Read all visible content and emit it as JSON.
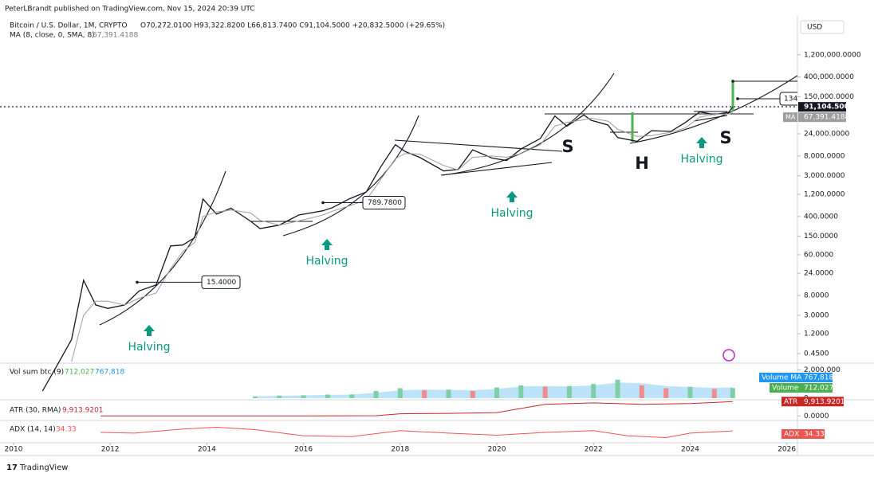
{
  "header": {
    "publisher": "PeterLBrandt published on TradingView.com, Nov 15, 2024 20:39 UTC"
  },
  "footer": {
    "brand": "TradingView"
  },
  "chart_data": {
    "type": "line",
    "symbol": "Bitcoin / U.S. Dollar, 1M, CRYPTO",
    "ohlc": "O70,272.0100 H93,322.8200 L66,813.7400 C91,104.5000 +20,832.5000 (+29.65%)",
    "ma_legend": "MA (8, close, 0, SMA, 8)",
    "ma_name": "MA",
    "currency": "USD",
    "log_scale": true,
    "xlim": [
      2009.72,
      2026.22
    ],
    "xticks": [
      2010,
      2012,
      2014,
      2016,
      2018,
      2020,
      2022,
      2024,
      2026
    ],
    "ylim": [
      0.28,
      6000000
    ],
    "yticks": [
      {
        "value": 1200000,
        "label": "1,200,000.0000"
      },
      {
        "value": 400000,
        "label": "400,000.0000"
      },
      {
        "value": 150000,
        "label": "150,000.0000"
      },
      {
        "value": 24000,
        "label": "24,000.0000"
      },
      {
        "value": 8000,
        "label": "8,000.0000"
      },
      {
        "value": 3000,
        "label": "3,000.0000"
      },
      {
        "value": 1200,
        "label": "1,200.0000"
      },
      {
        "value": 400,
        "label": "400.0000"
      },
      {
        "value": 150,
        "label": "150.0000"
      },
      {
        "value": 60,
        "label": "60.0000"
      },
      {
        "value": 24,
        "label": "24.0000"
      },
      {
        "value": 8,
        "label": "8.0000"
      },
      {
        "value": 3,
        "label": "3.0000"
      },
      {
        "value": 1.2,
        "label": "1.2000"
      },
      {
        "value": 0.45,
        "label": "0.4500"
      }
    ],
    "x": [
      2010.6,
      2010.9,
      2011.2,
      2011.45,
      2011.7,
      2011.95,
      2012.3,
      2012.6,
      2012.95,
      2013.25,
      2013.5,
      2013.75,
      2013.92,
      2014.2,
      2014.5,
      2014.9,
      2015.1,
      2015.5,
      2015.9,
      2016.4,
      2016.6,
      2016.95,
      2017.3,
      2017.6,
      2017.9,
      2018.1,
      2018.4,
      2018.9,
      2019.2,
      2019.5,
      2019.9,
      2020.2,
      2020.5,
      2020.9,
      2021.2,
      2021.45,
      2021.8,
      2021.95,
      2022.3,
      2022.5,
      2022.9,
      2023.2,
      2023.6,
      2023.9,
      2024.2,
      2024.5,
      2024.8,
      2024.88
    ],
    "series": [
      {
        "color": "#131722",
        "values": [
          0.07,
          0.25,
          0.9,
          17,
          5,
          4.2,
          5,
          10,
          13.5,
          93,
          97,
          140,
          950,
          450,
          600,
          320,
          220,
          260,
          430,
          530,
          620,
          960,
          1350,
          4700,
          14000,
          10000,
          7500,
          3800,
          4100,
          10800,
          7200,
          6400,
          11300,
          19000,
          58000,
          35000,
          61000,
          47000,
          37000,
          20000,
          16500,
          28000,
          27000,
          42000,
          71000,
          62000,
          70000,
          91104.5
        ]
      },
      {
        "color": "#9e9e9e",
        "values": [
          null,
          null,
          0.3,
          3,
          6,
          6,
          5,
          7,
          9,
          30,
          70,
          110,
          400,
          500,
          550,
          480,
          330,
          260,
          320,
          430,
          520,
          680,
          900,
          2500,
          7000,
          9000,
          8800,
          5000,
          4000,
          7500,
          8000,
          7500,
          9000,
          14000,
          35000,
          42000,
          48000,
          52000,
          45000,
          30000,
          21000,
          22000,
          26000,
          32000,
          55000,
          63000,
          64000,
          67391.4188
        ]
      }
    ],
    "last_price": {
      "value": 91104.5,
      "label": "91,104.5000"
    },
    "ma_last": {
      "value": 67391.4188,
      "label": "67,391.4188"
    },
    "callouts": [
      {
        "value": 15.4,
        "label": "15.4000"
      },
      {
        "value": 789.78,
        "label": "789.7800"
      }
    ],
    "partial_callout": "134.",
    "annotations": [
      "Halving",
      "Halving",
      "Halving",
      "Halving"
    ],
    "patterns": [
      "S",
      "H",
      "S"
    ],
    "volume": {
      "legend": "Vol sum btc (9)",
      "ylim": [
        -117600,
        2470000
      ],
      "yticks": [
        {
          "value": 2000000,
          "label": "2,000,000"
        },
        0
      ],
      "x": [
        2015,
        2015.5,
        2016,
        2016.5,
        2017,
        2017.5,
        2018,
        2018.5,
        2019,
        2019.5,
        2020,
        2020.5,
        2021,
        2021.5,
        2022,
        2022.5,
        2023,
        2023.5,
        2024,
        2024.5,
        2024.88
      ],
      "values": [
        120000,
        180000,
        200000,
        250000,
        260000,
        500000,
        700000,
        550000,
        600000,
        500000,
        750000,
        900000,
        800000,
        850000,
        1000000,
        1300000,
        900000,
        700000,
        800000,
        650000,
        712027
      ],
      "ma_values": [
        130000,
        160000,
        190000,
        220000,
        250000,
        380000,
        560000,
        600000,
        580000,
        560000,
        650000,
        820000,
        850000,
        830000,
        900000,
        1100000,
        1050000,
        850000,
        780000,
        720000,
        767818
      ],
      "up_color": "#7fcfa6",
      "down_color": "#f28b8b",
      "ma_color": "#8fd0f5",
      "name": "Volume",
      "ma_name": "Volume MA",
      "last": {
        "value": 712027,
        "label": "712,027"
      },
      "ma_last": {
        "value": 767818,
        "label": "767,818"
      }
    },
    "atr": {
      "legend": "ATR (30, RMA)",
      "name": "ATR",
      "color": "#c62828",
      "ylim": [
        -3100,
        11150
      ],
      "yticks": [
        {
          "value": 0,
          "label": "0.0000"
        }
      ],
      "x": [
        2011.8,
        2014,
        2016,
        2017.5,
        2018,
        2019,
        2020,
        2021,
        2022,
        2023,
        2024,
        2024.88
      ],
      "values": [
        0,
        50,
        60,
        200,
        1500,
        1800,
        2300,
        8000,
        9000,
        8000,
        8500,
        9913.9201
      ],
      "last": {
        "value": 9913.9201,
        "label": "9,913.9201"
      }
    },
    "adx": {
      "legend": "ADX (14, 14)",
      "name": "ADX",
      "color": "#ef5350",
      "ylim": [
        0,
        60
      ],
      "x": [
        2011.8,
        2012.5,
        2013.5,
        2014.2,
        2015,
        2016,
        2017,
        2018,
        2019,
        2020,
        2021,
        2022,
        2022.7,
        2023.5,
        2024,
        2024.88
      ],
      "values": [
        30,
        28,
        40,
        45,
        38,
        20,
        18,
        35,
        28,
        22,
        30,
        35,
        20,
        15,
        28,
        34.33
      ]
    }
  }
}
